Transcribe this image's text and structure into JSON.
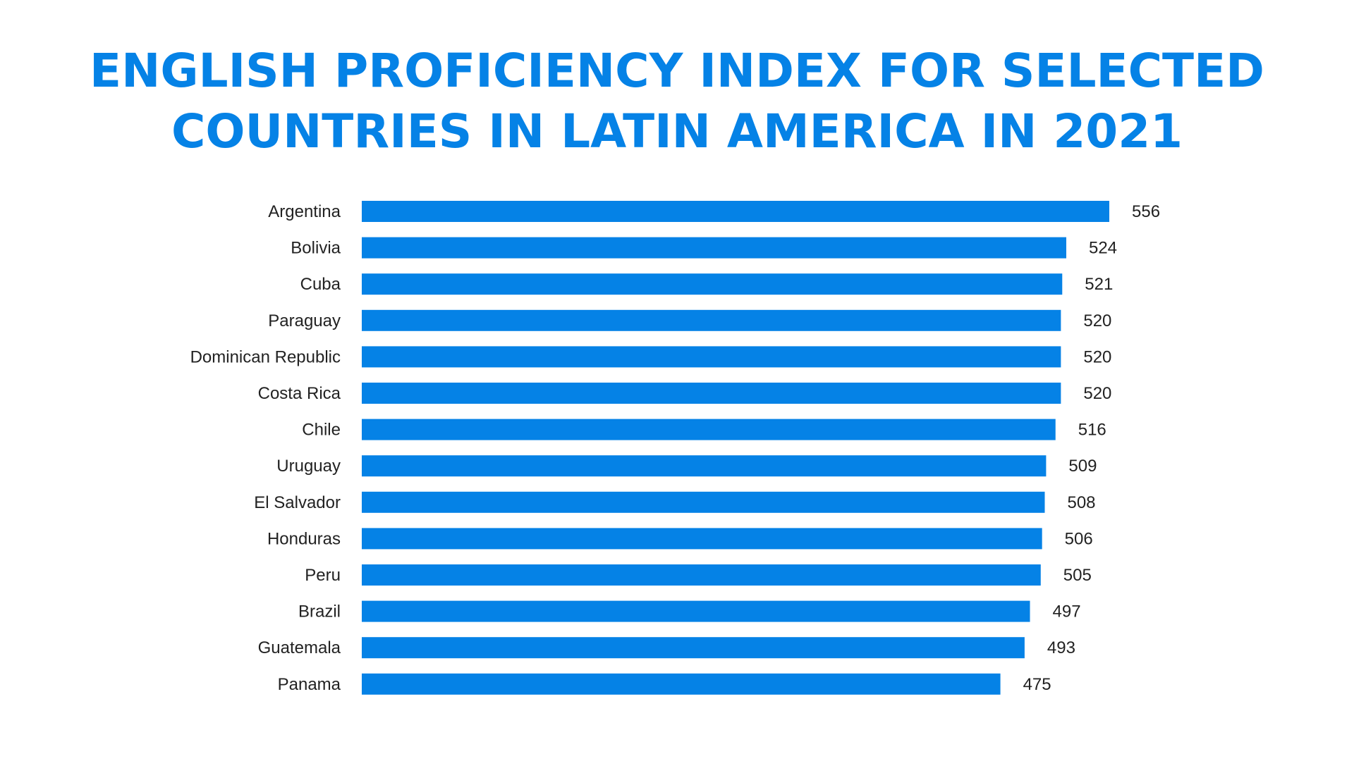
{
  "chart_data": {
    "type": "bar",
    "orientation": "horizontal",
    "title": "ENGLISH PROFICIENCY INDEX FOR SELECTED COUNTRIES IN LATIN AMERICA IN 2021",
    "title_lines": [
      "ENGLISH PROFICIENCY INDEX FOR SELECTED",
      "COUNTRIES IN LATIN AMERICA IN 2021"
    ],
    "xlabel": "",
    "ylabel": "",
    "categories": [
      "Argentina",
      "Bolivia",
      "Cuba",
      "Paraguay",
      "Dominican Republic",
      "Costa Rica",
      "Chile",
      "Uruguay",
      "El Salvador",
      "Honduras",
      "Peru",
      "Brazil",
      "Guatemala",
      "Panama"
    ],
    "values": [
      556,
      524,
      521,
      520,
      520,
      520,
      516,
      509,
      508,
      506,
      505,
      497,
      493,
      475
    ],
    "xlim": [
      0,
      556
    ],
    "grid": false,
    "data_labels": true,
    "bar_color": "#0582e6",
    "title_color": "#0582e6"
  }
}
